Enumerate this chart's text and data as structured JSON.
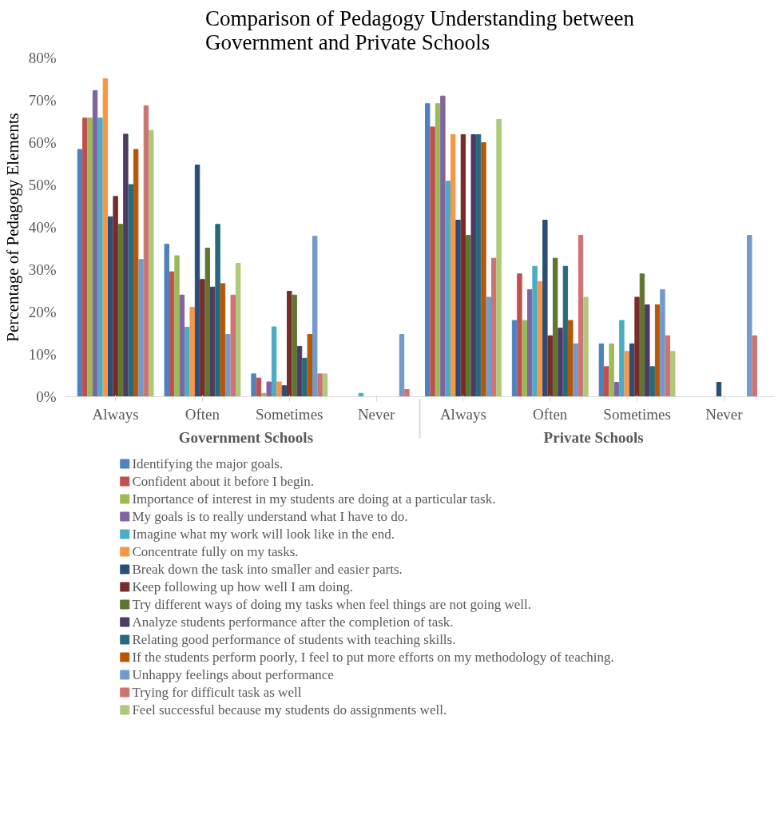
{
  "chart_data": {
    "type": "bar",
    "title": "Comparison of Pedagogy Understanding between\nGovernment and Private Schools",
    "ylabel": "Percentage of Pedagogy Elements",
    "categories": [
      "Always",
      "Often",
      "Sometimes",
      "Never",
      "Always",
      "Often",
      "Sometimes",
      "Never"
    ],
    "annotations": [
      "Government Schools",
      "Private Schools"
    ],
    "ylim": [
      0,
      80
    ],
    "yticks": [
      {
        "value": 0,
        "label": "0%"
      },
      {
        "value": 10,
        "label": "10%"
      },
      {
        "value": 20,
        "label": "20%"
      },
      {
        "value": 30,
        "label": "30%"
      },
      {
        "value": 40,
        "label": "40%"
      },
      {
        "value": 50,
        "label": "50%"
      },
      {
        "value": 60,
        "label": "60%"
      },
      {
        "value": 70,
        "label": "70%"
      },
      {
        "value": 80,
        "label": "80%"
      }
    ],
    "legend": "bottom",
    "series": [
      {
        "name": "Identifying the major goals.",
        "color": "#4f81bd",
        "values": [
          58.4,
          36.0,
          5.4,
          0,
          69.2,
          18.0,
          12.5,
          0
        ]
      },
      {
        "name": "Confident about it before I begin.",
        "color": "#c0504d",
        "values": [
          65.8,
          29.5,
          4.4,
          0,
          63.7,
          29.0,
          7.1,
          0
        ]
      },
      {
        "name": "Importance of interest in my students are doing at a particular task.",
        "color": "#9bbb59",
        "values": [
          65.8,
          33.3,
          0.8,
          0,
          69.2,
          18.0,
          12.5,
          0
        ]
      },
      {
        "name": "My goals is to really understand what I have to do.",
        "color": "#8064a2",
        "values": [
          72.3,
          24.0,
          3.5,
          0,
          71.0,
          25.3,
          3.4,
          0
        ]
      },
      {
        "name": "Imagine what my work will look like in the end.",
        "color": "#4bacc6",
        "values": [
          65.8,
          16.4,
          16.5,
          0.8,
          50.9,
          30.8,
          18.0,
          0
        ]
      },
      {
        "name": "Concentrate fully on my tasks.",
        "color": "#f79646",
        "values": [
          75.1,
          21.1,
          3.5,
          0,
          61.9,
          27.2,
          10.7,
          0
        ]
      },
      {
        "name": "Break down the task into smaller and easier parts.",
        "color": "#2c4d75",
        "values": [
          42.5,
          54.7,
          2.6,
          0,
          41.7,
          41.7,
          12.5,
          3.4
        ]
      },
      {
        "name": "Keep following up how well I am doing.",
        "color": "#772c2a",
        "values": [
          47.3,
          27.7,
          24.9,
          0,
          61.9,
          14.4,
          23.5,
          0
        ]
      },
      {
        "name": "Try different ways of doing my tasks when feel things are not going well.",
        "color": "#5f7530",
        "values": [
          40.7,
          35.1,
          24.0,
          0,
          38.1,
          32.7,
          29.0,
          0
        ]
      },
      {
        "name": "Analyze students performance after the completion of task.",
        "color": "#4d3b62",
        "values": [
          62.0,
          25.9,
          11.9,
          0,
          61.9,
          16.2,
          21.7,
          0
        ]
      },
      {
        "name": "Relating good performance of students with teaching skills.",
        "color": "#276a7c",
        "values": [
          50.1,
          40.7,
          9.1,
          0,
          61.9,
          30.8,
          7.1,
          0
        ]
      },
      {
        "name": "If the students perform poorly, I feel to put more efforts on my methodology of teaching.",
        "color": "#b65708",
        "values": [
          58.4,
          26.7,
          14.7,
          0,
          60.0,
          18.0,
          21.7,
          0
        ]
      },
      {
        "name": "Unhappy feelings about performance",
        "color": "#729aca",
        "values": [
          32.4,
          14.7,
          37.9,
          14.7,
          23.5,
          12.5,
          25.3,
          38.1
        ]
      },
      {
        "name": "Trying for difficult task as well",
        "color": "#cd7371",
        "values": [
          68.7,
          24.0,
          5.4,
          1.7,
          32.7,
          38.1,
          14.4,
          14.4
        ]
      },
      {
        "name": "Feel successful because my students do assignments well.",
        "color": "#afc97a",
        "values": [
          62.9,
          31.5,
          5.4,
          0,
          65.5,
          23.5,
          10.7,
          0
        ]
      }
    ]
  }
}
